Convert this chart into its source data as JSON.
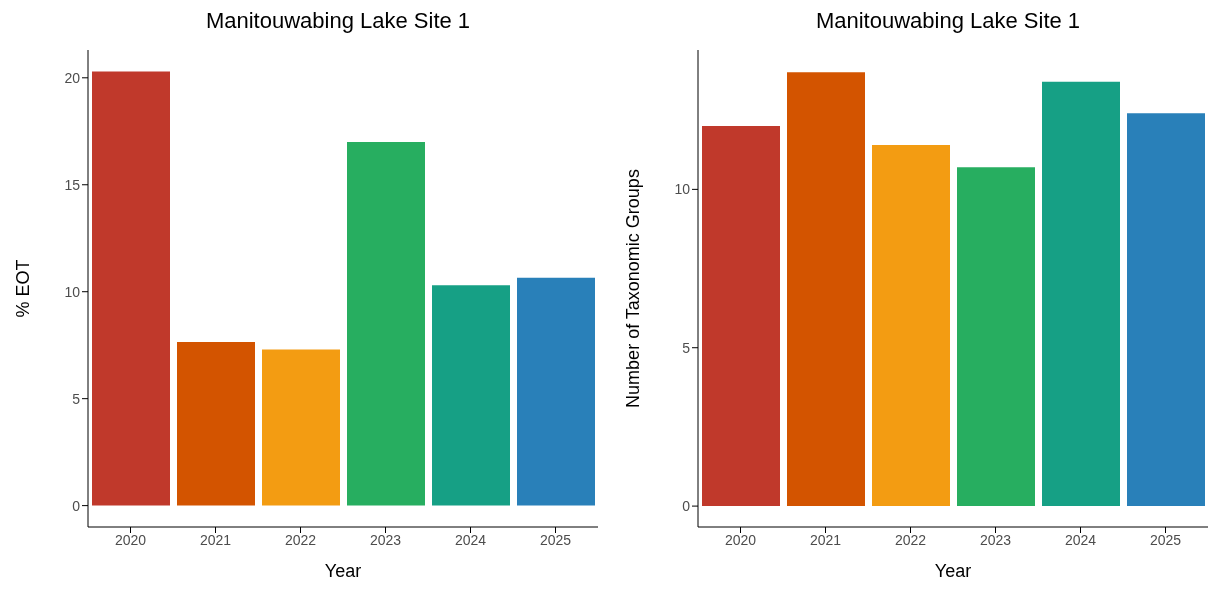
{
  "chart_data": [
    {
      "type": "bar",
      "title": "Manitouwabing Lake Site 1",
      "xlabel": "Year",
      "ylabel": "% EOT",
      "categories": [
        "2020",
        "2021",
        "2022",
        "2023",
        "2024",
        "2025"
      ],
      "values": [
        20.3,
        7.65,
        7.3,
        17.0,
        10.3,
        10.65
      ],
      "colors": [
        "#c0392b",
        "#d35400",
        "#f39c12",
        "#27ae60",
        "#16a085",
        "#2980b9"
      ],
      "ylim": [
        -1,
        21.3
      ],
      "yticks": [
        0,
        5,
        10,
        15,
        20
      ],
      "grid": false,
      "legend": false
    },
    {
      "type": "bar",
      "title": "Manitouwabing Lake Site 1",
      "xlabel": "Year",
      "ylabel": "Number of Taxonomic Groups",
      "categories": [
        "2020",
        "2021",
        "2022",
        "2023",
        "2024",
        "2025"
      ],
      "values": [
        12.0,
        13.7,
        11.4,
        10.7,
        13.4,
        12.4
      ],
      "colors": [
        "#c0392b",
        "#d35400",
        "#f39c12",
        "#27ae60",
        "#16a085",
        "#2980b9"
      ],
      "ylim": [
        -0.66,
        14.4
      ],
      "yticks": [
        0,
        5,
        10
      ],
      "grid": false,
      "legend": false
    }
  ]
}
